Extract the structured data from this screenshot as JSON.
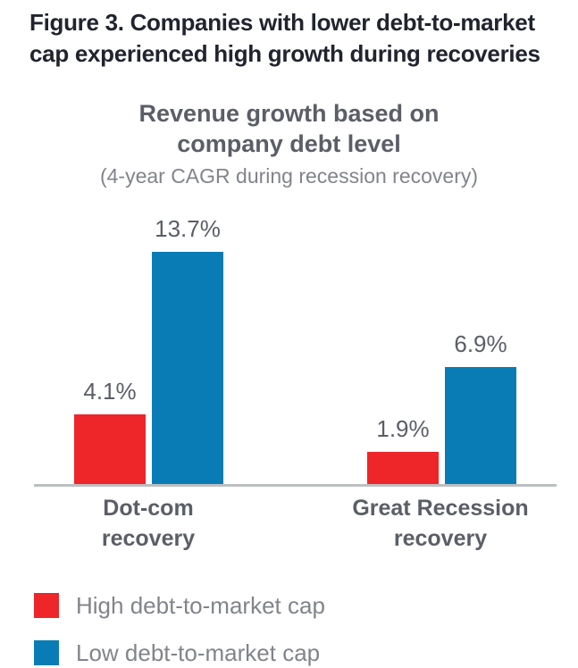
{
  "figure": {
    "title_lines": [
      "Figure 3. Companies with lower debt-to-market",
      "cap experienced high growth during recoveries"
    ]
  },
  "chart": {
    "title_lines": [
      "Revenue growth based on",
      "company debt level"
    ],
    "subtitle": "(4-year CAGR during recession recovery)"
  },
  "chart_data": {
    "type": "bar",
    "title": "Revenue growth based on company debt level",
    "subtitle": "(4-year CAGR during recession recovery)",
    "categories": [
      "Dot-com recovery",
      "Great Recession recovery"
    ],
    "category_lines": [
      [
        "Dot-com",
        "recovery"
      ],
      [
        "Great Recession",
        "recovery"
      ]
    ],
    "series": [
      {
        "name": "High debt-to-market cap",
        "color": "#ee2529",
        "values": [
          4.1,
          1.9
        ]
      },
      {
        "name": "Low debt-to-market cap",
        "color": "#0a7cb5",
        "values": [
          13.7,
          6.9
        ]
      }
    ],
    "value_labels": [
      [
        "4.1%",
        "13.7%"
      ],
      [
        "1.9%",
        "6.9%"
      ]
    ],
    "unit": "%",
    "ylim": [
      0,
      15
    ],
    "grid": false,
    "y_axis_shown": false,
    "axis_line_color": "#bdbfc1",
    "legend_position": "bottom-left"
  },
  "legend": {
    "items": [
      {
        "label": "High debt-to-market cap",
        "color": "#ee2529"
      },
      {
        "label": "Low debt-to-market cap",
        "color": "#0a7cb5"
      }
    ]
  },
  "colors": {
    "title_text": "#21242e",
    "axis_text": "#5b5e66",
    "muted_text": "#82848a",
    "high_debt_red": "#ee2529",
    "low_debt_blue": "#0a7cb5",
    "baseline_gray": "#bdbfc1"
  }
}
